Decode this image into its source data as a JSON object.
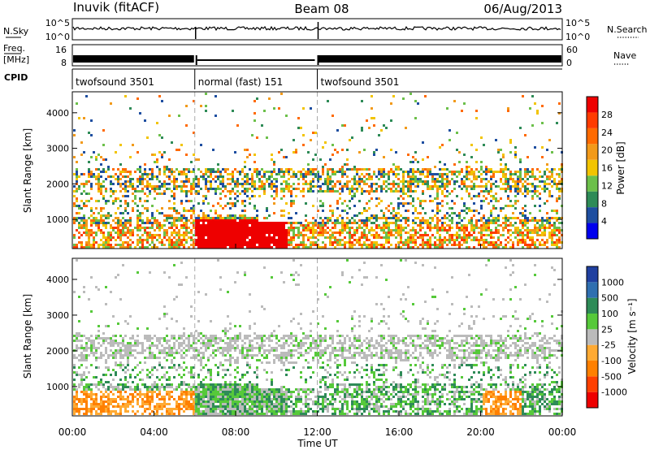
{
  "header": {
    "station": "Inuvik (fitACF)",
    "beam": "Beam 08",
    "date": "06/Aug/2013"
  },
  "colors": {
    "scale_power": [
      "#0000ee",
      "#1e4ea0",
      "#2e8b57",
      "#6cc04a",
      "#f2c400",
      "#f29a1a",
      "#ff6a00",
      "#ff3b00",
      "#ee0000"
    ],
    "scale_velocity": [
      "#ee0000",
      "#ff4000",
      "#ff8000",
      "#ffaa33",
      "#bbbbbb",
      "#56c93a",
      "#2e8b57",
      "#2f6fb0",
      "#2040a0"
    ],
    "noise_trace": "#000000"
  },
  "chart_data": [
    {
      "type": "line",
      "name": "sky-noise-panel",
      "left_label": "N.Sky",
      "right_label": "N.Search",
      "left_ticks": [
        "10^5",
        "10^0"
      ],
      "right_ticks": [
        "10^5",
        "10^0"
      ],
      "right_legend_style": "dotted"
    },
    {
      "type": "line",
      "name": "frequency-panel",
      "left_label_top": "Freq.",
      "left_label_bottom": "[MHz]",
      "right_label": "Nave",
      "left_ticks": [
        "16",
        "8"
      ],
      "right_ticks": [
        "60",
        "0"
      ],
      "right_legend_style": "dotted"
    },
    {
      "type": "table",
      "name": "cpid-panel",
      "label": "CPID",
      "segments": [
        {
          "start_ut": "00:00",
          "end_ut": "06:00",
          "label": "twofsound 3501"
        },
        {
          "start_ut": "06:00",
          "end_ut": "12:00",
          "label": "normal (fast) 151"
        },
        {
          "start_ut": "12:00",
          "end_ut": "24:00",
          "label": "twofsound 3501"
        }
      ]
    },
    {
      "type": "heatmap",
      "name": "power-panel",
      "ylabel": "Slant Range [km]",
      "yticks": [
        1000,
        2000,
        3000,
        4000
      ],
      "ylim": [
        180,
        4590
      ],
      "xlim_hours": [
        0,
        24
      ],
      "colorbar_label": "Power [dB]",
      "colorbar_ticks": [
        "4",
        "8",
        "12",
        "16",
        "20",
        "24",
        "28"
      ],
      "bands": [
        {
          "t0": 0,
          "t1": 6,
          "r0": 250,
          "r1": 900,
          "level": 6
        },
        {
          "t0": 6,
          "t1": 10.5,
          "r0": 250,
          "r1": 1050,
          "level": 8
        },
        {
          "t0": 0,
          "t1": 4,
          "r0": 2000,
          "r1": 2350,
          "level": 5
        },
        {
          "t0": 12,
          "t1": 24,
          "r0": 2000,
          "r1": 2400,
          "level": 4
        },
        {
          "t0": 13,
          "t1": 24,
          "r0": 400,
          "r1": 1200,
          "level": 3
        }
      ]
    },
    {
      "type": "heatmap",
      "name": "velocity-panel",
      "ylabel": "Slant Range [km]",
      "yticks": [
        1000,
        2000,
        3000,
        4000
      ],
      "ylim": [
        180,
        4590
      ],
      "xlim_hours": [
        0,
        24
      ],
      "xticks": [
        "00:00",
        "04:00",
        "08:00",
        "12:00",
        "16:00",
        "20:00",
        "00:00"
      ],
      "xlabel": "Time UT",
      "colorbar_label": "Velocity [m s⁻¹]",
      "colorbar_ticks": [
        "1000",
        "500",
        "100",
        "25",
        "-25",
        "-100",
        "-500",
        "-1000"
      ]
    }
  ]
}
